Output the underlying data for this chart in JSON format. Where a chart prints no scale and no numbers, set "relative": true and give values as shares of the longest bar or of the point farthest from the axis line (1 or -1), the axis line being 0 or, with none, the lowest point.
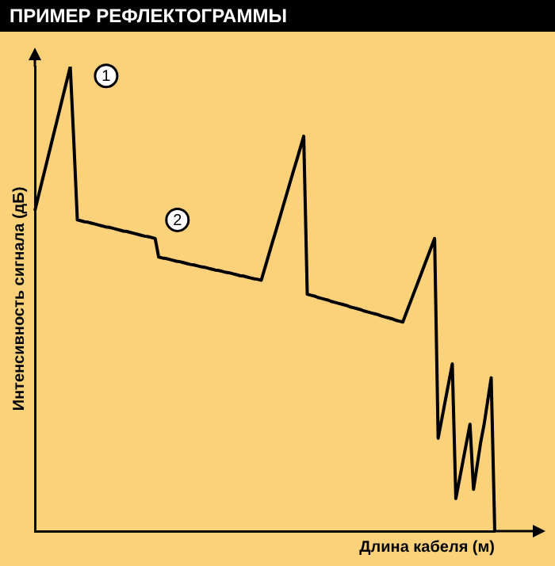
{
  "chart_data": {
    "type": "line",
    "title": "ПРИМЕР РЕФЛЕКТОГРАММЫ",
    "xlabel": "Длина кабеля (м)",
    "ylabel": "Интенсивность сигнала (дБ)",
    "relative": true,
    "grid": false,
    "legend": false,
    "marker": "none",
    "line_style": "solid",
    "categories": [
      null,
      null,
      null,
      null,
      null,
      null,
      null,
      null,
      null,
      null,
      null,
      null,
      null,
      null,
      null,
      null,
      null,
      null,
      null,
      null,
      null,
      null,
      null,
      null,
      null,
      null,
      null,
      null,
      null,
      null,
      null,
      null,
      null,
      null,
      null,
      null,
      null,
      null,
      null,
      null,
      null,
      null,
      null,
      null,
      null,
      null,
      null,
      null,
      null,
      null,
      null,
      null,
      null,
      null,
      null,
      null,
      null,
      null,
      null,
      null,
      null,
      null,
      null,
      null,
      null,
      null,
      null,
      null,
      null,
      null,
      null,
      null,
      null,
      null,
      null,
      null,
      null,
      null,
      null,
      null,
      null,
      null,
      null,
      null,
      null,
      null,
      null,
      null,
      null,
      null,
      null,
      null,
      null,
      null,
      null,
      null,
      null,
      null,
      null,
      null,
      null,
      null,
      null,
      null,
      null,
      null,
      null,
      null,
      null,
      null,
      null,
      null,
      null,
      null,
      null,
      null,
      null,
      null,
      null,
      null,
      null,
      null,
      null,
      null,
      null,
      null,
      null,
      null,
      null,
      null,
      null
    ],
    "series": [
      {
        "color": "#000000",
        "values": [
          0.69,
          0.721,
          0.752,
          0.783,
          0.814,
          0.845,
          0.876,
          0.907,
          0.938,
          0.969,
          1,
          0.84,
          0.67,
          0.668,
          0.666,
          0.665,
          0.663,
          0.661,
          0.659,
          0.657,
          0.655,
          0.654,
          0.652,
          0.65,
          0.648,
          0.646,
          0.645,
          0.643,
          0.641,
          0.639,
          0.637,
          0.635,
          0.634,
          0.632,
          0.63,
          0.59,
          0.588,
          0.587,
          0.585,
          0.583,
          0.581,
          0.58,
          0.578,
          0.576,
          0.574,
          0.573,
          0.571,
          0.569,
          0.568,
          0.566,
          0.564,
          0.562,
          0.561,
          0.559,
          0.557,
          0.556,
          0.554,
          0.552,
          0.55,
          0.549,
          0.547,
          0.545,
          0.543,
          0.542,
          0.54,
          0.566,
          0.592,
          0.618,
          0.643,
          0.669,
          0.695,
          0.721,
          0.747,
          0.773,
          0.798,
          0.824,
          0.85,
          0.51,
          0.508,
          0.506,
          0.503,
          0.501,
          0.499,
          0.497,
          0.494,
          0.492,
          0.49,
          0.488,
          0.486,
          0.483,
          0.481,
          0.479,
          0.477,
          0.474,
          0.472,
          0.47,
          0.468,
          0.466,
          0.463,
          0.461,
          0.459,
          0.457,
          0.454,
          0.452,
          0.45,
          0.47,
          0.49,
          0.51,
          0.53,
          0.55,
          0.57,
          0.59,
          0.61,
          0.63,
          0.2,
          0.24,
          0.28,
          0.32,
          0.36,
          0.07,
          0.11,
          0.15,
          0.19,
          0.23,
          0.09,
          0.14,
          0.19,
          0.23,
          0.28,
          0.33,
          0
        ]
      }
    ],
    "annotations": [
      "1",
      "2"
    ]
  }
}
